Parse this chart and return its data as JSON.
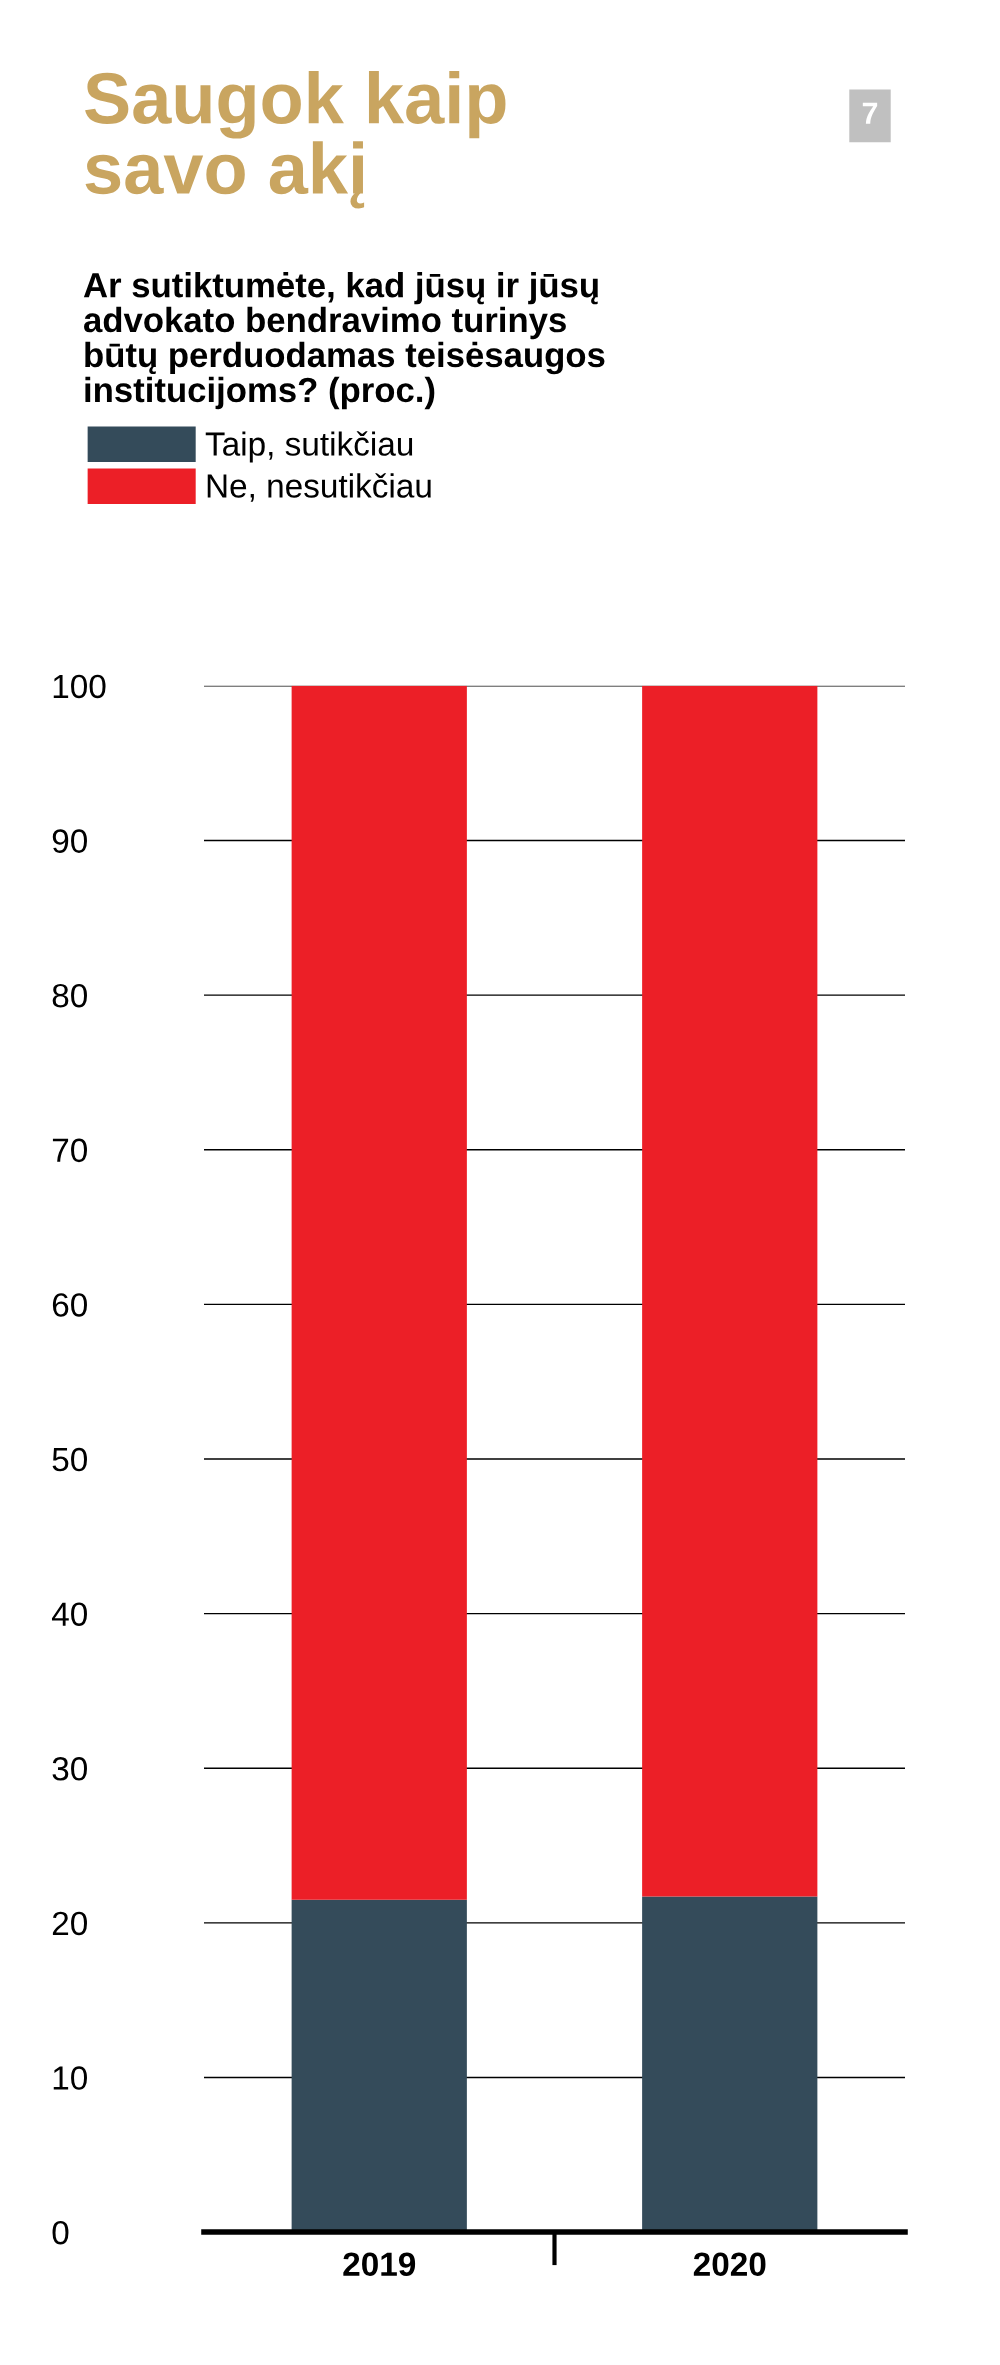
{
  "chart_data": {
    "type": "bar",
    "title": "Saugok kaip\nsavo akį",
    "subtitle": "Ar sutiktumėte, kad jūsų ir jūsų\nadvokato bendravimo turinys\nbūtų perduodamas teisėsaugos\ninstitucijoms? (proc.)",
    "annotations": [
      "7"
    ],
    "categories": [
      "2019",
      "2020"
    ],
    "stacked": true,
    "series": [
      {
        "name": "Taip, sutikčiau",
        "color": "#344b5a",
        "values": [
          21.5,
          21.7
        ]
      },
      {
        "name": "Ne, nesutikčiau",
        "color": "#ec1f27",
        "values": [
          78.5,
          78.3
        ]
      }
    ],
    "ylim": [
      0,
      100
    ],
    "yticks": [
      0,
      10,
      20,
      30,
      40,
      50,
      60,
      70,
      80,
      90,
      100
    ],
    "grid": "y",
    "legend": "top left"
  }
}
